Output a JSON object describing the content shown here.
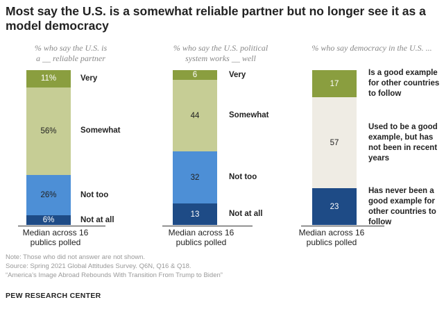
{
  "title": "Most say the U.S. is a somewhat reliable partner but no longer see it as a model democracy",
  "note": "Note: Those who did not answer are not shown.",
  "source": "Source: Spring 2021 Global Attitudes Survey. Q6N, Q16 & Q18.",
  "report": "“America’s Image Abroad Rebounds With Transition From Trump to Biden”",
  "brand": "PEW RESEARCH CENTER",
  "chart_data": [
    {
      "type": "bar",
      "stacked": true,
      "title": "% who say the U.S. is a __ reliable partner",
      "subtitle_lines": [
        "% who say the U.S. is",
        "a __ reliable partner"
      ],
      "xlabel": "Median across 16 publics polled",
      "xlabel_lines": [
        "Median across 16",
        "publics polled"
      ],
      "segments": [
        {
          "label": "Very",
          "label_lines": [
            "Very"
          ],
          "value": 11,
          "display": "11%",
          "color": "#8a9e3f",
          "text_color": "#ffffff"
        },
        {
          "label": "Somewhat",
          "label_lines": [
            "Somewhat"
          ],
          "value": 56,
          "display": "56%",
          "color": "#c6cd95",
          "text_color": "#222222"
        },
        {
          "label": "Not too",
          "label_lines": [
            "Not too"
          ],
          "value": 26,
          "display": "26%",
          "color": "#4d8fd6",
          "text_color": "#222222"
        },
        {
          "label": "Not at all",
          "label_lines": [
            "Not at all"
          ],
          "value": 6,
          "display": "6%",
          "color": "#1e4b86",
          "text_color": "#ffffff"
        }
      ]
    },
    {
      "type": "bar",
      "stacked": true,
      "title": "% who say the U.S. political system works __ well",
      "subtitle_lines": [
        "% who say the U.S. political",
        "system works __ well"
      ],
      "xlabel": "Median across 16 publics polled",
      "xlabel_lines": [
        "Median across 16",
        "publics polled"
      ],
      "segments": [
        {
          "label": "Very",
          "label_lines": [
            "Very"
          ],
          "value": 6,
          "display": "6",
          "color": "#8a9e3f",
          "text_color": "#ffffff"
        },
        {
          "label": "Somewhat",
          "label_lines": [
            "Somewhat"
          ],
          "value": 44,
          "display": "44",
          "color": "#c6cd95",
          "text_color": "#222222"
        },
        {
          "label": "Not too",
          "label_lines": [
            "Not too"
          ],
          "value": 32,
          "display": "32",
          "color": "#4d8fd6",
          "text_color": "#222222"
        },
        {
          "label": "Not at all",
          "label_lines": [
            "Not at all"
          ],
          "value": 13,
          "display": "13",
          "color": "#1e4b86",
          "text_color": "#ffffff"
        }
      ]
    },
    {
      "type": "bar",
      "stacked": true,
      "title": "% who say democracy in the U.S. ...",
      "subtitle_lines": [
        "% who say democracy in the U.S. ..."
      ],
      "xlabel": "Median across 16 publics polled",
      "xlabel_lines": [
        "Median across 16",
        "publics polled"
      ],
      "segments": [
        {
          "label": "Is a good example for other countries to follow",
          "label_lines": [
            "Is a good example",
            "for other countries",
            "to follow"
          ],
          "value": 17,
          "display": "17",
          "color": "#8a9e3f",
          "text_color": "#ffffff"
        },
        {
          "label": "Used to be a good example, but has not been in recent years",
          "label_lines": [
            "Used to be a good",
            "example, but has",
            "not been in recent",
            "years"
          ],
          "value": 57,
          "display": "57",
          "color": "#efece4",
          "text_color": "#222222"
        },
        {
          "label": "Has never been a good example for other countries to follow",
          "label_lines": [
            "Has never been a",
            "good example for",
            "other countries to",
            "follow"
          ],
          "value": 23,
          "display": "23",
          "color": "#1e4b86",
          "text_color": "#ffffff"
        }
      ]
    }
  ]
}
